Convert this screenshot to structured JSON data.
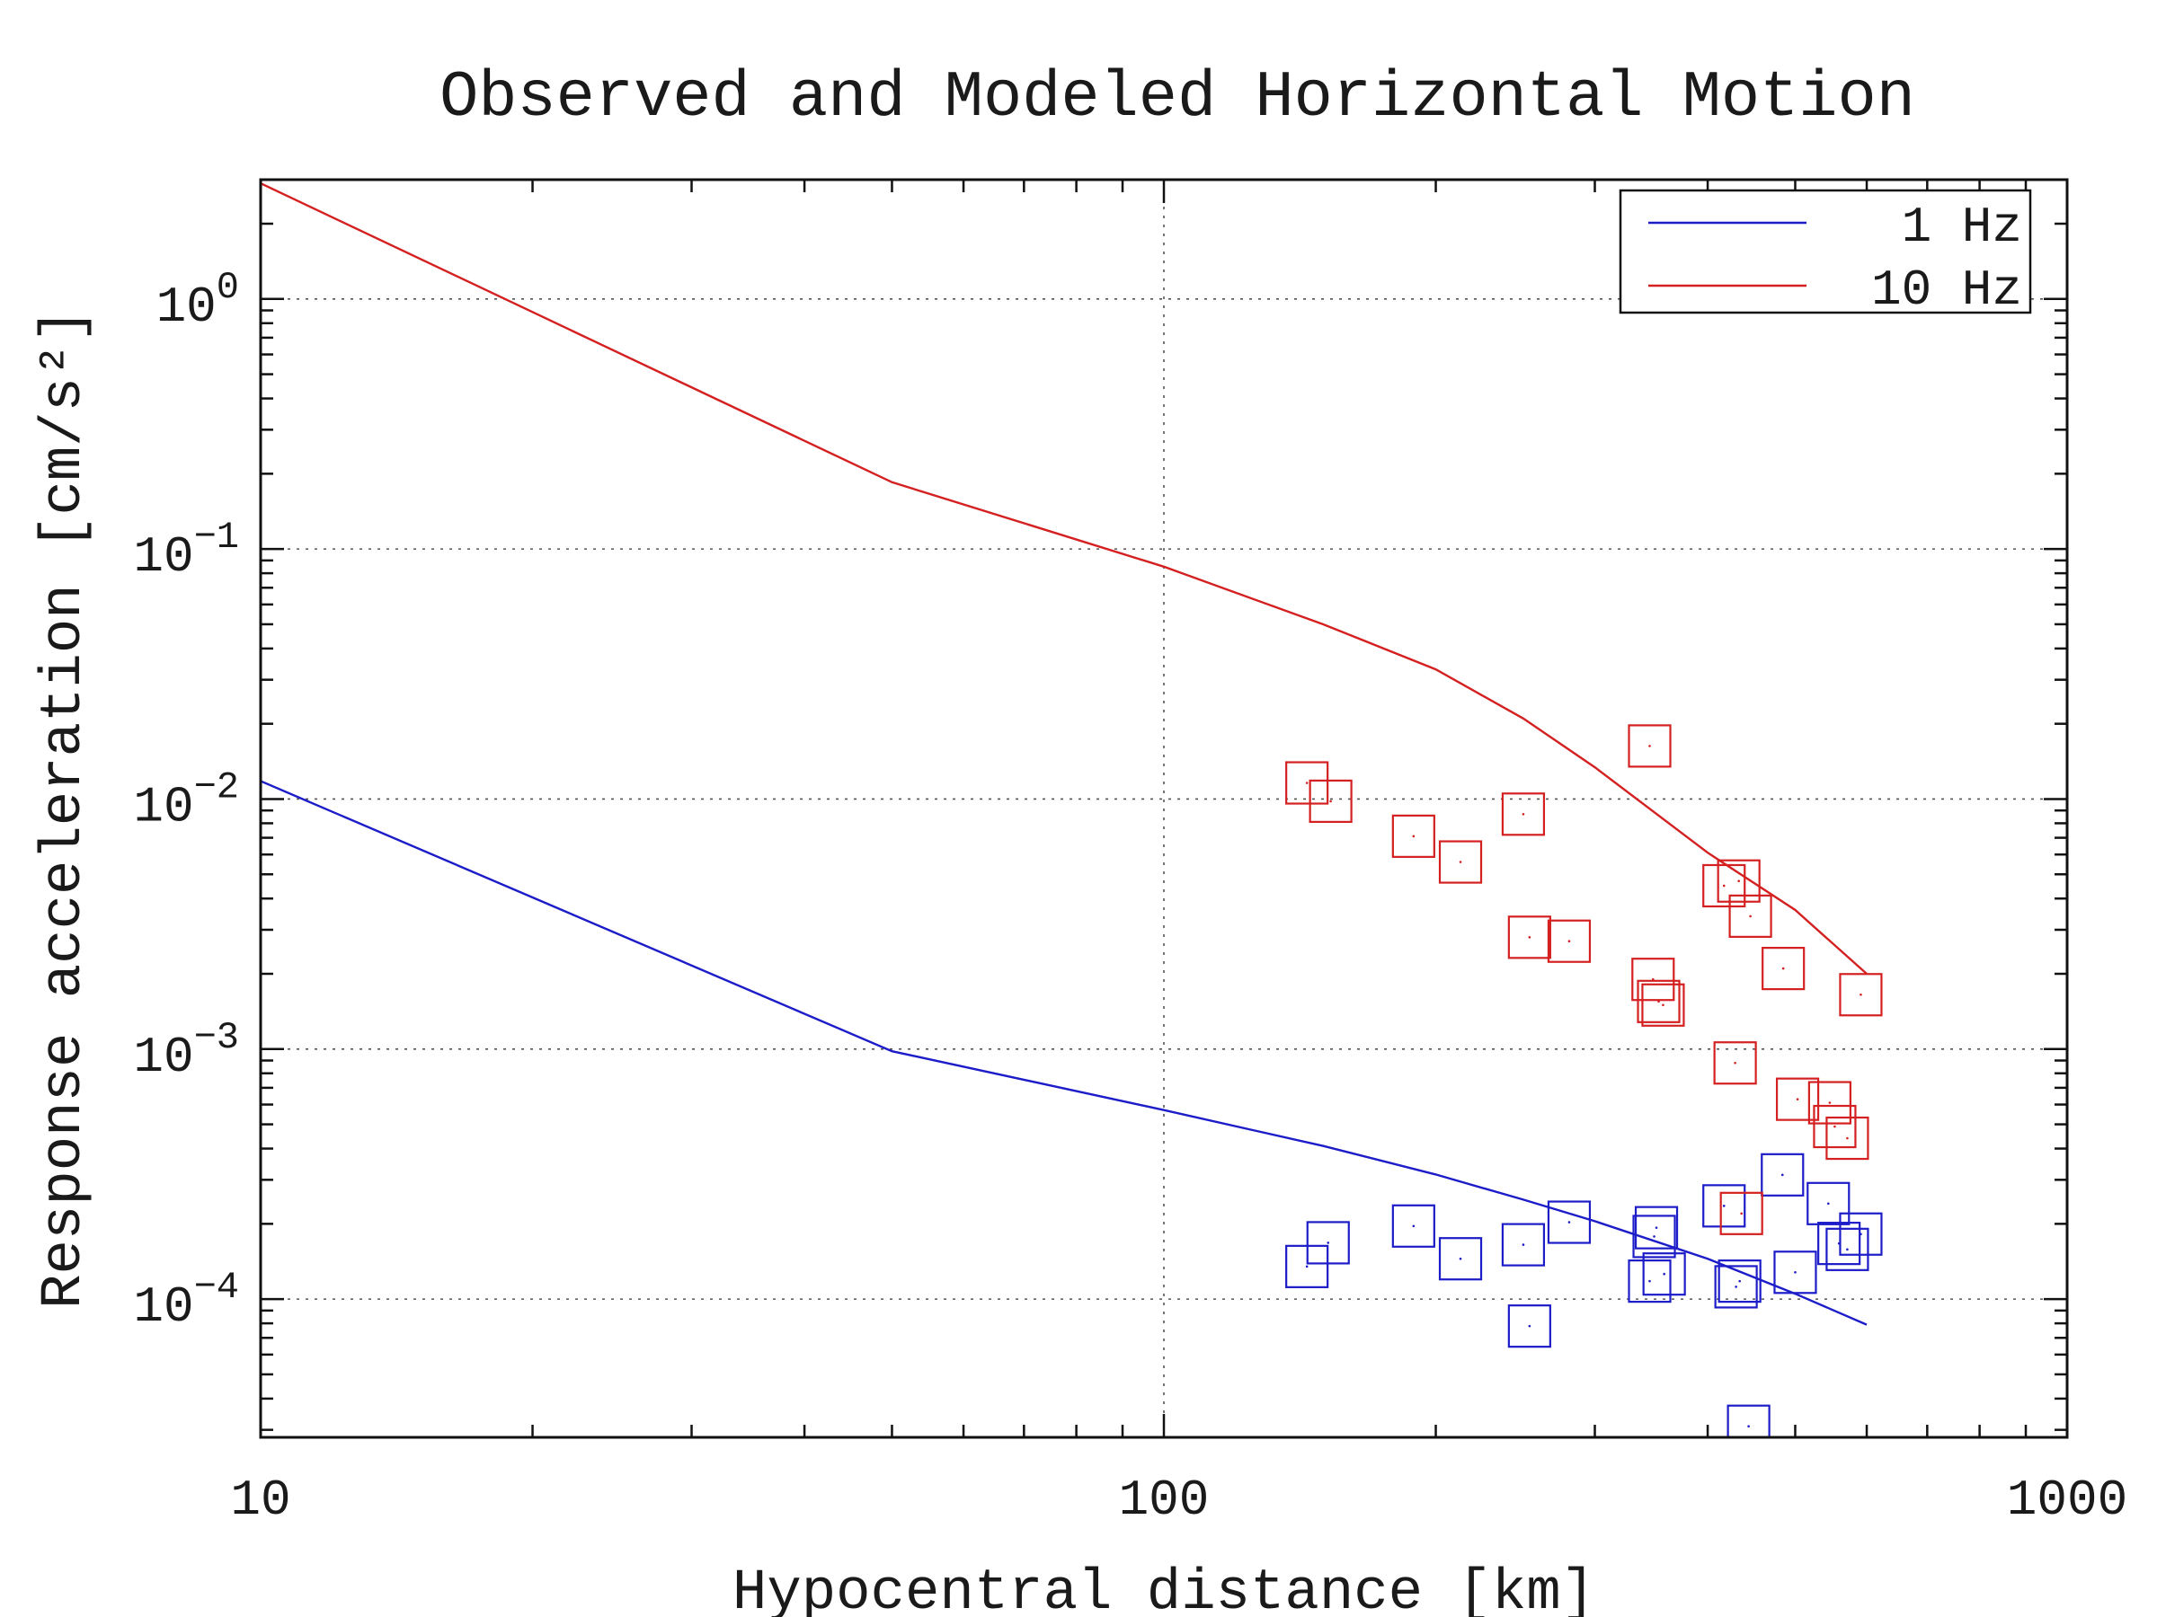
{
  "chart_data": {
    "type": "scatter",
    "title": "Observed and Modeled Horizontal Motion",
    "xlabel": "Hypocentral distance [km]",
    "ylabel": "Response acceleration [cm/s²]",
    "xscale": "log",
    "yscale": "log",
    "xlim": [
      10,
      1000
    ],
    "ylim": [
      2.8e-05,
      3.0
    ],
    "grid": true,
    "legend_position": "top-right",
    "x_ticks": [
      {
        "value": 10,
        "label": "10"
      },
      {
        "value": 100,
        "label": "100"
      },
      {
        "value": 1000,
        "label": "1000"
      }
    ],
    "y_ticks": [
      {
        "value": 1,
        "base": "10",
        "exp": "0"
      },
      {
        "value": 0.1,
        "base": "10",
        "exp": "−1"
      },
      {
        "value": 0.01,
        "base": "10",
        "exp": "−2"
      },
      {
        "value": 0.001,
        "base": "10",
        "exp": "−3"
      },
      {
        "value": 0.0001,
        "base": "10",
        "exp": "−4"
      }
    ],
    "series": [
      {
        "name": "1 Hz",
        "color": "#1c1cc8",
        "model_line": {
          "x": [
            10,
            50,
            100,
            150,
            200,
            250,
            300,
            400,
            500,
            600
          ],
          "y": [
            0.0118,
            0.00098,
            0.00057,
            0.00041,
            0.000315,
            0.00025,
            0.000205,
            0.000145,
            0.000105,
            7.9e-05
          ]
        },
        "observed": {
          "x": [
            144,
            152,
            189,
            213,
            250,
            254,
            281,
            345,
            349,
            351,
            358,
            417,
            430,
            434,
            444,
            484,
            500,
            544,
            559,
            571,
            591
          ],
          "y": [
            0.000135,
            0.000168,
            0.000196,
            0.000145,
            0.000165,
            7.8e-05,
            0.000203,
            0.000118,
            0.000178,
            0.000193,
            0.000126,
            0.000236,
            0.000112,
            0.000118,
            3.1e-05,
            0.000314,
            0.000128,
            0.000241,
            0.000167,
            0.000158,
            0.000182
          ]
        }
      },
      {
        "name": "10 Hz",
        "color": "#d42020",
        "model_line": {
          "x": [
            10,
            50,
            100,
            150,
            200,
            250,
            300,
            400,
            500,
            600
          ],
          "y": [
            2.9,
            0.185,
            0.085,
            0.05,
            0.033,
            0.021,
            0.0134,
            0.0061,
            0.0036,
            0.002
          ]
        },
        "observed": {
          "x": [
            144,
            153,
            189,
            213,
            250,
            254,
            281,
            345,
            348,
            353,
            357,
            417,
            429,
            433,
            436,
            446,
            485,
            503,
            546,
            553,
            571,
            591
          ],
          "y": [
            0.0116,
            0.0098,
            0.0071,
            0.0056,
            0.0087,
            0.0028,
            0.0027,
            0.0163,
            0.0019,
            0.00155,
            0.0015,
            0.0045,
            0.00088,
            0.0047,
            0.00022,
            0.0034,
            0.0021,
            0.00063,
            0.00061,
            0.00049,
            0.00044,
            0.00165
          ]
        }
      }
    ]
  }
}
